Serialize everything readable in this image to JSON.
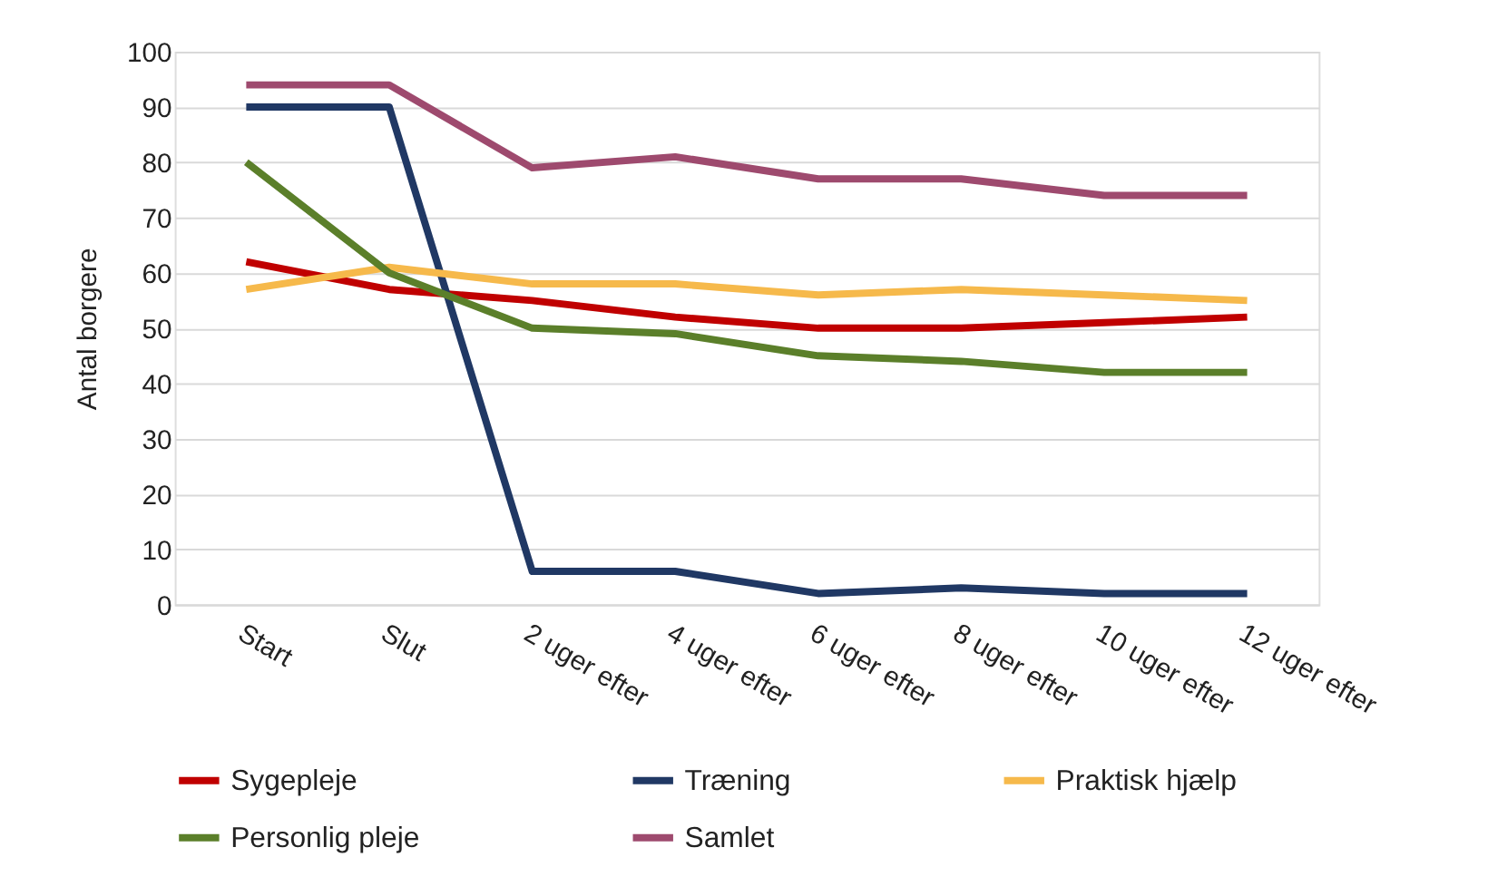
{
  "chart_data": {
    "type": "line",
    "ylabel": "Antal borgere",
    "categories": [
      "Start",
      "Slut",
      "2 uger efter",
      "4 uger efter",
      "6 uger efter",
      "8 uger efter",
      "10 uger efter",
      "12 uger efter"
    ],
    "series": [
      {
        "name": "Sygepleje",
        "color": "#c00000",
        "values": [
          62,
          57,
          55,
          52,
          50,
          50,
          51,
          52
        ]
      },
      {
        "name": "Træning",
        "color": "#203864",
        "values": [
          90,
          90,
          6,
          6,
          2,
          3,
          2,
          2
        ]
      },
      {
        "name": "Praktisk hjælp",
        "color": "#f6b94b",
        "values": [
          57,
          61,
          58,
          58,
          56,
          57,
          56,
          55
        ]
      },
      {
        "name": "Personlig pleje",
        "color": "#5b7f2a",
        "values": [
          80,
          60,
          50,
          49,
          45,
          44,
          42,
          42
        ]
      },
      {
        "name": "Samlet",
        "color": "#9e4a6e",
        "values": [
          94,
          94,
          79,
          81,
          77,
          77,
          74,
          74
        ]
      }
    ],
    "ylim": [
      0,
      100
    ],
    "yticks": [
      0,
      10,
      20,
      30,
      40,
      50,
      60,
      70,
      80,
      90,
      100
    ],
    "grid": "y",
    "legend": "bottom",
    "marker": "none",
    "line_style": "solid"
  }
}
